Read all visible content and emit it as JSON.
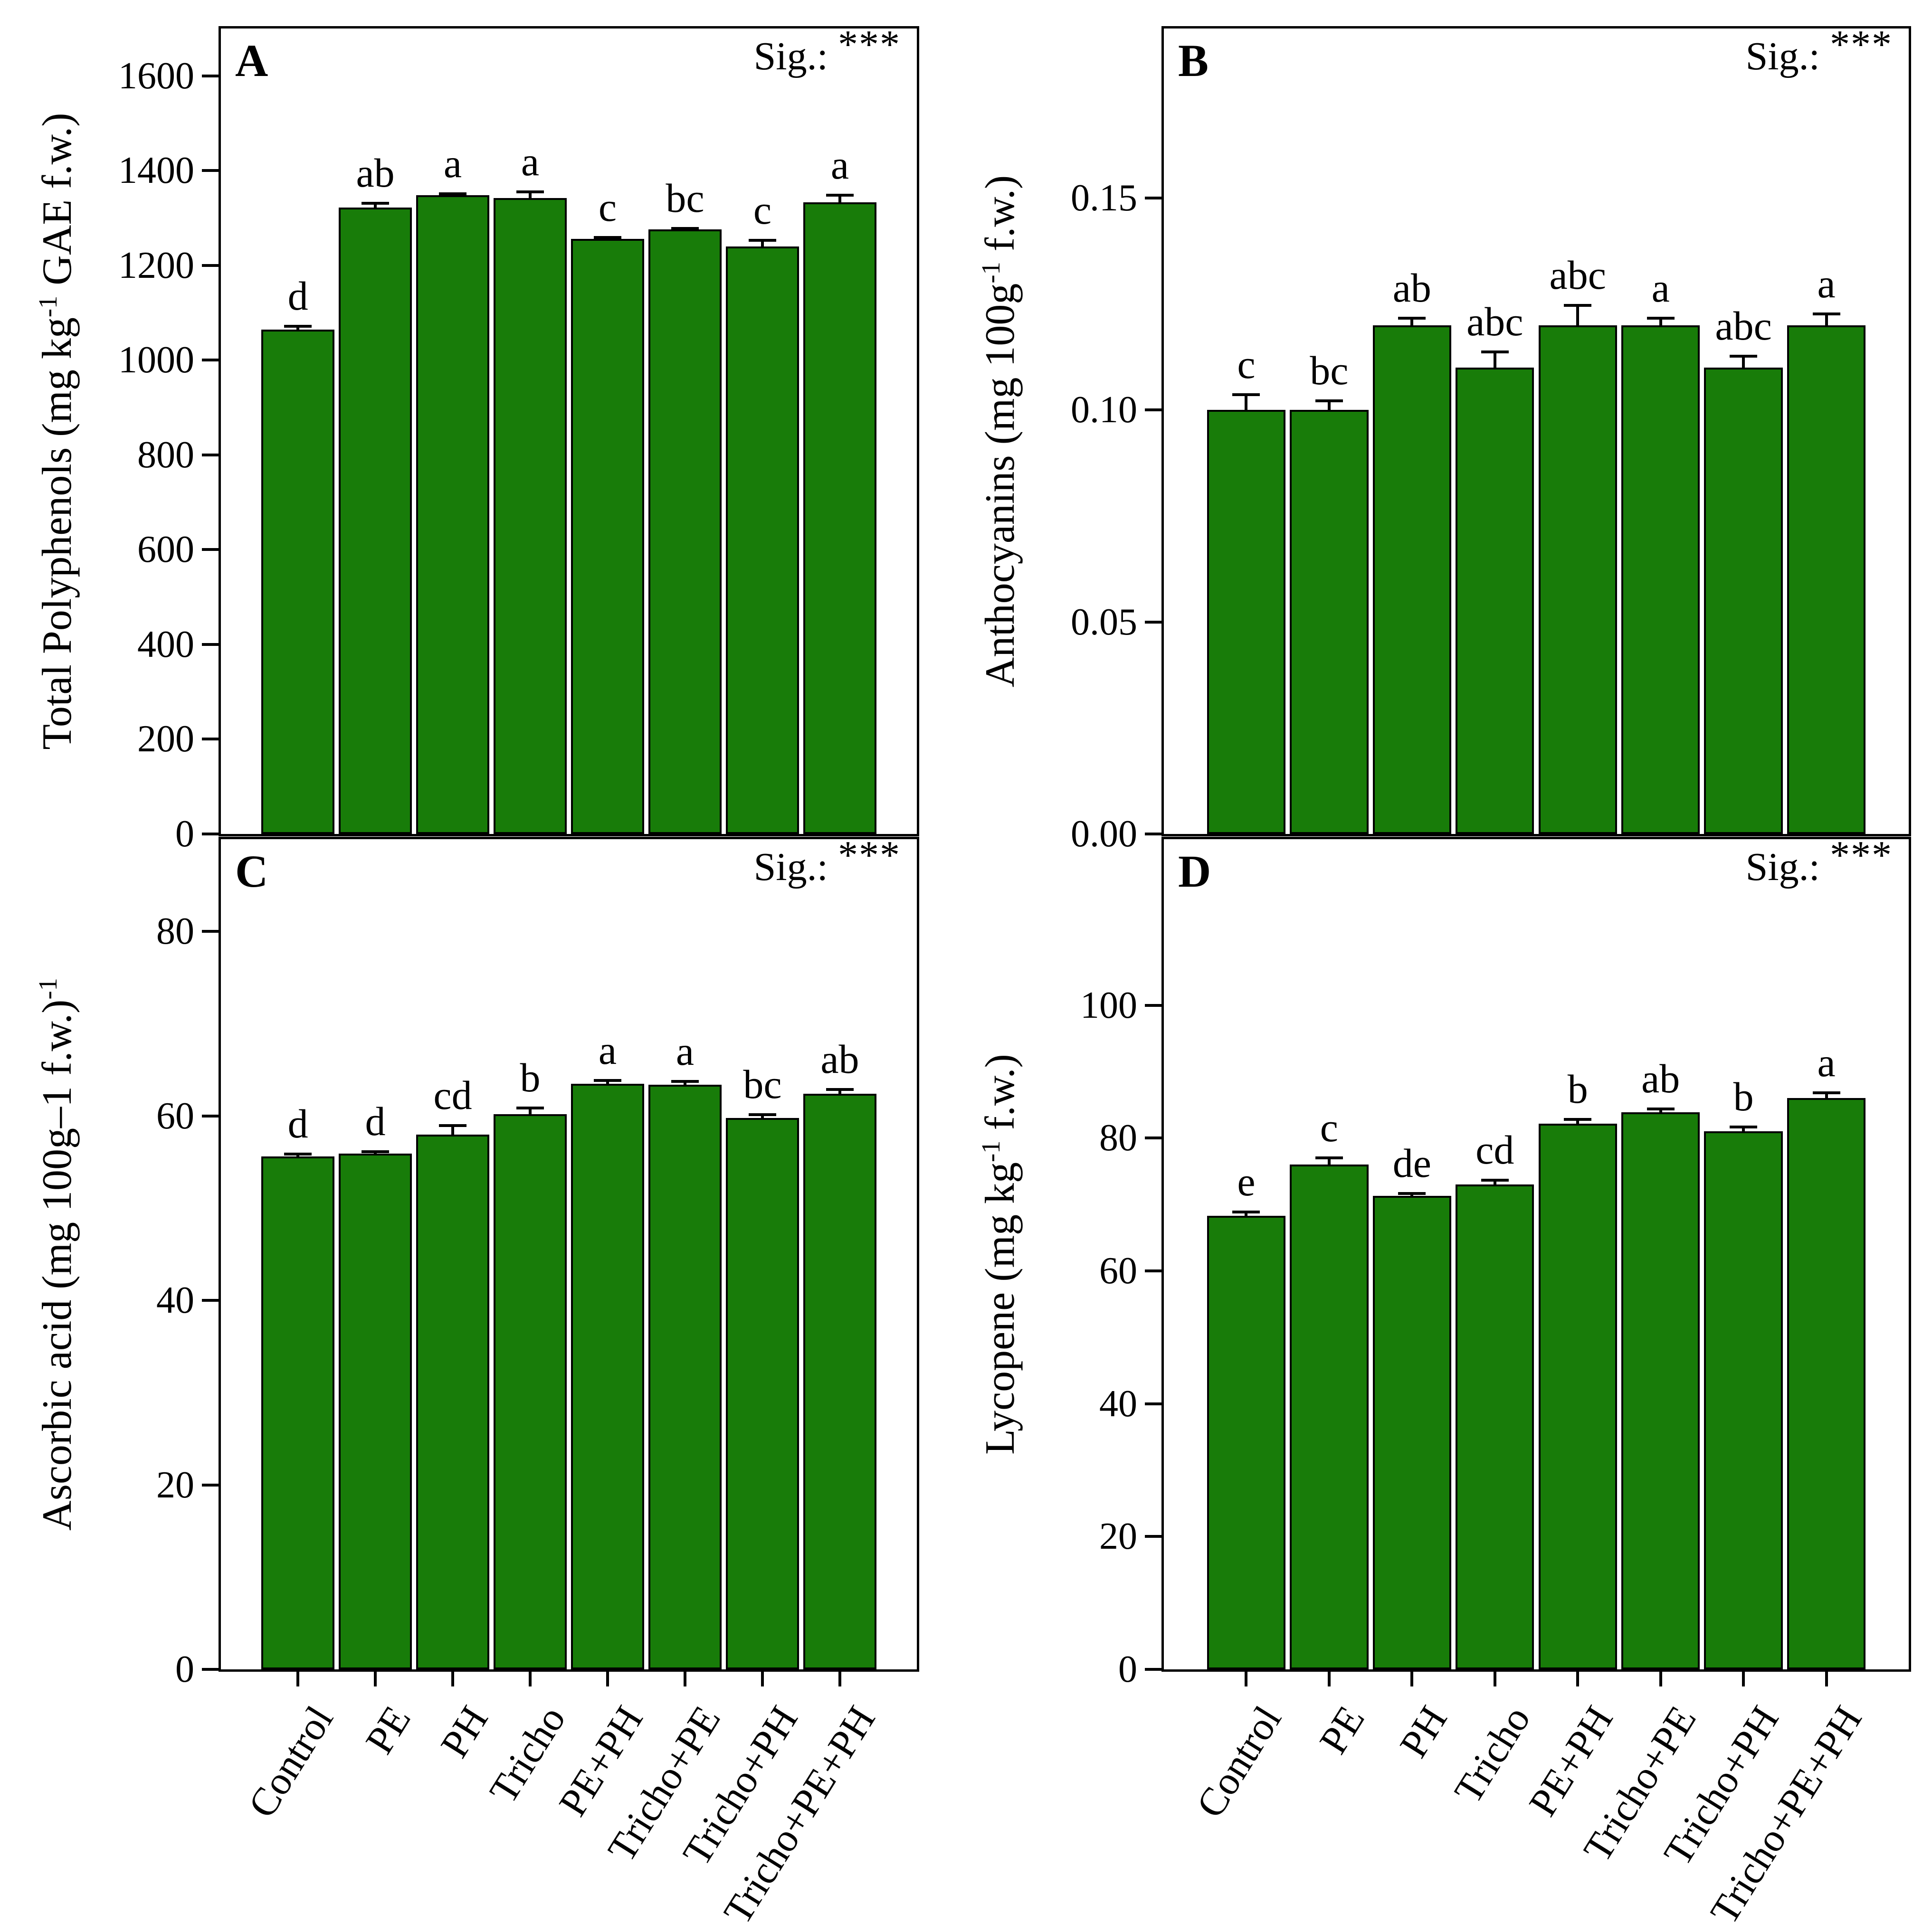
{
  "bar_color": "#187c09",
  "axis_color": "#000000",
  "categories": [
    "Control",
    "PE",
    "PH",
    "Tricho",
    "PE+PH",
    "Tricho+PE",
    "Tricho+PH",
    "Tricho+PE+PH"
  ],
  "chart_data": [
    {
      "id": "A",
      "type": "bar",
      "panel_label": "A",
      "sig_text": "Sig.:",
      "sig_stars": "***",
      "ylabel_parts": [
        {
          "t": "Total Polyphenols (mg kg"
        },
        {
          "t": "-1",
          "sup": true
        },
        {
          "t": " GAE f.w.)"
        }
      ],
      "categories": [
        "Control",
        "PE",
        "PH",
        "Tricho",
        "PE+PH",
        "Tricho+PE",
        "Tricho+PH",
        "Tricho+PE+PH"
      ],
      "values": [
        1065,
        1322,
        1348,
        1342,
        1256,
        1276,
        1240,
        1333
      ],
      "errors": [
        10,
        12,
        6,
        16,
        6,
        5,
        16,
        18
      ],
      "letters": [
        "d",
        "ab",
        "a",
        "a",
        "c",
        "bc",
        "c",
        "a"
      ],
      "ylim": [
        0,
        1700
      ],
      "yticks": [
        {
          "v": 0,
          "label": "0"
        },
        {
          "v": 200,
          "label": "200"
        },
        {
          "v": 400,
          "label": "400"
        },
        {
          "v": 600,
          "label": "600"
        },
        {
          "v": 800,
          "label": "800"
        },
        {
          "v": 1000,
          "label": "1000"
        },
        {
          "v": 1200,
          "label": "1200"
        },
        {
          "v": 1400,
          "label": "1400"
        },
        {
          "v": 1600,
          "label": "1600"
        }
      ],
      "show_xlabels": false,
      "grid": false,
      "legend": null
    },
    {
      "id": "B",
      "type": "bar",
      "panel_label": "B",
      "sig_text": "Sig.:",
      "sig_stars": "***",
      "ylabel_parts": [
        {
          "t": "Anthocyanins (mg 100g"
        },
        {
          "t": "-1",
          "sup": true
        },
        {
          "t": " f.w.)"
        }
      ],
      "categories": [
        "Control",
        "PE",
        "PH",
        "Tricho",
        "PE+PH",
        "Tricho+PE",
        "Tricho+PH",
        "Tricho+PE+PH"
      ],
      "values": [
        0.1,
        0.1,
        0.12,
        0.11,
        0.12,
        0.12,
        0.11,
        0.12
      ],
      "errors": [
        0.004,
        0.0025,
        0.002,
        0.004,
        0.005,
        0.002,
        0.003,
        0.003
      ],
      "letters": [
        "c",
        "bc",
        "ab",
        "abc",
        "abc",
        "a",
        "abc",
        "a"
      ],
      "ylim": [
        0,
        0.19
      ],
      "yticks": [
        {
          "v": 0,
          "label": "0.00"
        },
        {
          "v": 0.05,
          "label": "0.05"
        },
        {
          "v": 0.1,
          "label": "0.10"
        },
        {
          "v": 0.15,
          "label": "0.15"
        }
      ],
      "show_xlabels": false,
      "grid": false,
      "legend": null
    },
    {
      "id": "C",
      "type": "bar",
      "panel_label": "C",
      "sig_text": "Sig.:",
      "sig_stars": "***",
      "ylabel_parts": [
        {
          "t": "Ascorbic acid (mg 100g–1 f.w.)"
        },
        {
          "t": "-1",
          "sup": true
        }
      ],
      "categories": [
        "Control",
        "PE",
        "PH",
        "Tricho",
        "PE+PH",
        "Tricho+PE",
        "Tricho+PH",
        "Tricho+PE+PH"
      ],
      "values": [
        55.6,
        55.9,
        58.0,
        60.2,
        63.5,
        63.4,
        59.8,
        62.4
      ],
      "errors": [
        0.4,
        0.4,
        1.1,
        0.8,
        0.5,
        0.5,
        0.5,
        0.6
      ],
      "letters": [
        "d",
        "d",
        "cd",
        "b",
        "a",
        "a",
        "bc",
        "ab"
      ],
      "ylim": [
        0,
        90
      ],
      "yticks": [
        {
          "v": 0,
          "label": "0"
        },
        {
          "v": 20,
          "label": "20"
        },
        {
          "v": 40,
          "label": "40"
        },
        {
          "v": 60,
          "label": "60"
        },
        {
          "v": 80,
          "label": "80"
        }
      ],
      "show_xlabels": true,
      "grid": false,
      "legend": null
    },
    {
      "id": "D",
      "type": "bar",
      "panel_label": "D",
      "sig_text": "Sig.:",
      "sig_stars": "***",
      "ylabel_parts": [
        {
          "t": "Lycopene (mg kg"
        },
        {
          "t": "-1",
          "sup": true
        },
        {
          "t": " f.w.)"
        }
      ],
      "categories": [
        "Control",
        "PE",
        "PH",
        "Tricho",
        "PE+PH",
        "Tricho+PE",
        "Tricho+PH",
        "Tricho+PE+PH"
      ],
      "values": [
        68.3,
        76.0,
        71.3,
        73.0,
        82.2,
        83.9,
        81.0,
        86.0
      ],
      "errors": [
        0.8,
        1.2,
        0.6,
        0.9,
        0.8,
        0.7,
        0.9,
        1.0
      ],
      "letters": [
        "e",
        "c",
        "de",
        "cd",
        "b",
        "ab",
        "b",
        "a"
      ],
      "ylim": [
        0,
        125
      ],
      "yticks": [
        {
          "v": 0,
          "label": "0"
        },
        {
          "v": 20,
          "label": "20"
        },
        {
          "v": 40,
          "label": "40"
        },
        {
          "v": 60,
          "label": "60"
        },
        {
          "v": 80,
          "label": "80"
        },
        {
          "v": 100,
          "label": "100"
        }
      ],
      "show_xlabels": true,
      "grid": false,
      "legend": null
    }
  ]
}
